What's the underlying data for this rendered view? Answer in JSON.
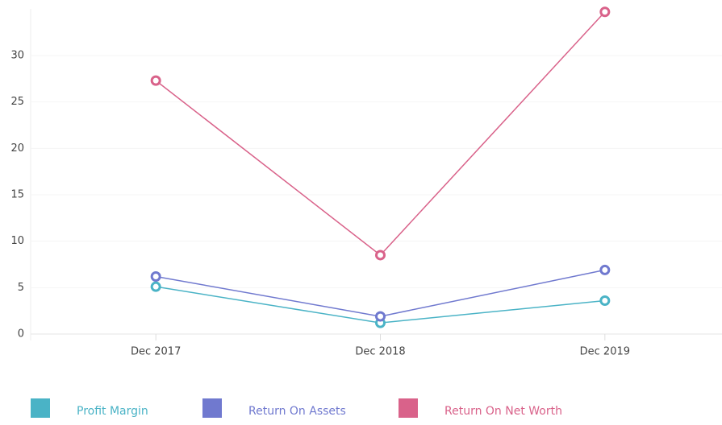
{
  "chart_data": {
    "type": "line",
    "categories": [
      "Dec 2017",
      "Dec 2018",
      "Dec 2019"
    ],
    "series": [
      {
        "name": "Profit Margin",
        "color": "#4ab3c6",
        "values": [
          5.1,
          1.2,
          3.6
        ]
      },
      {
        "name": "Return On Assets",
        "color": "#7079cf",
        "values": [
          6.2,
          1.9,
          6.9
        ]
      },
      {
        "name": "Return On Net Worth",
        "color": "#d9628a",
        "values": [
          27.3,
          8.5,
          34.7
        ]
      }
    ],
    "ylim": [
      0,
      35
    ],
    "yticks": [
      0,
      5,
      10,
      15,
      20,
      25,
      30
    ],
    "grid": true
  }
}
